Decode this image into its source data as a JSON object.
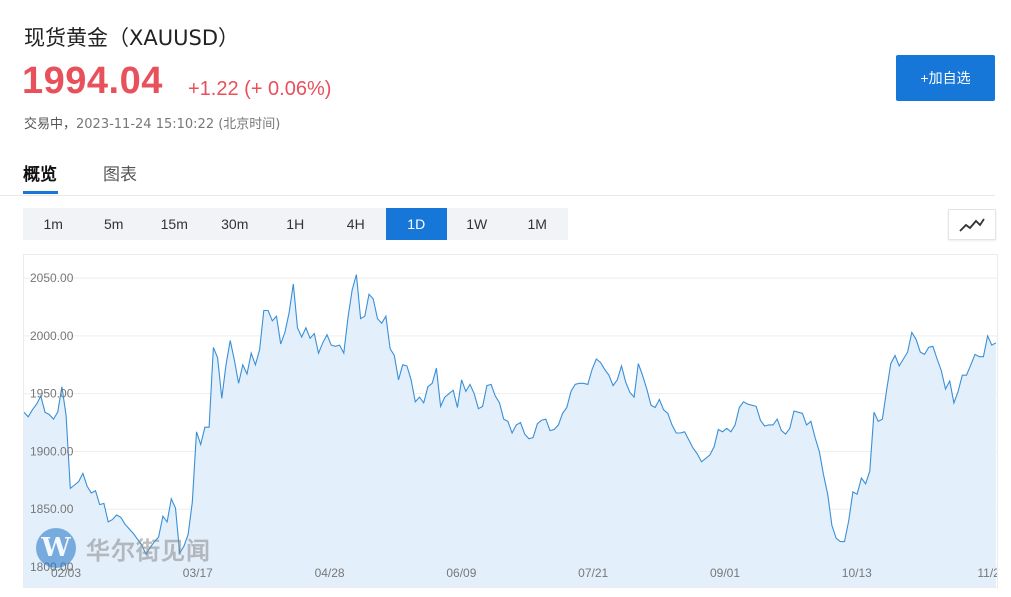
{
  "header": {
    "title": "现货黄金（XAUUSD）",
    "price": "1994.04",
    "change": "+1.22 (+ 0.06%)",
    "status_label": "交易中，",
    "timestamp": "2023-11-24 15:10:22",
    "timezone": "(北京时间)",
    "add_button_label": "+加自选"
  },
  "tabs": [
    {
      "label": "概览",
      "active": true
    },
    {
      "label": "图表",
      "active": false
    }
  ],
  "periods": [
    "1m",
    "5m",
    "15m",
    "30m",
    "1H",
    "4H",
    "1D",
    "1W",
    "1M"
  ],
  "active_period": "1D",
  "chart_type_icon": "line-chart-icon",
  "watermark": {
    "logo_letter": "W",
    "text": "华尔街见闻"
  },
  "colors": {
    "up": "#e8505b",
    "accent": "#1677d9",
    "line": "#3a8fd6",
    "area": "#e3f0fc"
  },
  "chart_data": {
    "type": "area",
    "ylim": [
      1800,
      2070
    ],
    "y_ticks": [
      "1800.00",
      "1850.00",
      "1900.00",
      "1950.00",
      "2000.00",
      "2050.00"
    ],
    "x_ticks": [
      "02/03",
      "03/17",
      "04/28",
      "06/09",
      "07/21",
      "09/01",
      "10/13",
      "11/2"
    ],
    "grid": true,
    "values": [
      1934,
      1930,
      1936,
      1941,
      1948,
      1934,
      1932,
      1928,
      1934,
      1956,
      1931,
      1868,
      1871,
      1874,
      1881,
      1870,
      1864,
      1866,
      1854,
      1855,
      1839,
      1841,
      1845,
      1843,
      1837,
      1833,
      1829,
      1824,
      1819,
      1811,
      1817,
      1822,
      1826,
      1844,
      1839,
      1859,
      1851,
      1812,
      1818,
      1828,
      1856,
      1917,
      1906,
      1921,
      1921,
      1990,
      1981,
      1946,
      1975,
      1996,
      1979,
      1959,
      1975,
      1967,
      1985,
      1975,
      1988,
      2022,
      2022,
      2013,
      2017,
      1993,
      2003,
      2020,
      2045,
      2007,
      1999,
      2007,
      1998,
      2002,
      1985,
      1994,
      2001,
      1992,
      1991,
      1992,
      1985,
      2016,
      2040,
      2053,
      2015,
      2017,
      2036,
      2032,
      2015,
      2011,
      2017,
      1989,
      1983,
      1962,
      1975,
      1974,
      1962,
      1943,
      1947,
      1942,
      1956,
      1959,
      1972,
      1939,
      1947,
      1950,
      1953,
      1938,
      1962,
      1952,
      1958,
      1950,
      1937,
      1939,
      1957,
      1958,
      1948,
      1942,
      1928,
      1926,
      1916,
      1923,
      1925,
      1915,
      1911,
      1912,
      1924,
      1927,
      1928,
      1918,
      1919,
      1923,
      1933,
      1938,
      1952,
      1958,
      1959,
      1959,
      1958,
      1971,
      1980,
      1977,
      1971,
      1966,
      1957,
      1962,
      1974,
      1960,
      1951,
      1947,
      1976,
      1966,
      1954,
      1940,
      1938,
      1945,
      1936,
      1933,
      1923,
      1916,
      1916,
      1917,
      1910,
      1903,
      1898,
      1891,
      1894,
      1897,
      1904,
      1919,
      1917,
      1920,
      1917,
      1923,
      1938,
      1943,
      1941,
      1940,
      1939,
      1927,
      1922,
      1923,
      1923,
      1928,
      1918,
      1915,
      1920,
      1935,
      1934,
      1933,
      1923,
      1926,
      1912,
      1900,
      1880,
      1863,
      1836,
      1825,
      1822,
      1822,
      1840,
      1865,
      1863,
      1877,
      1872,
      1883,
      1934,
      1926,
      1928,
      1953,
      1976,
      1983,
      1974,
      1980,
      1986,
      2003,
      1997,
      1986,
      1984,
      1990,
      1991,
      1980,
      1970,
      1954,
      1961,
      1942,
      1952,
      1966,
      1966,
      1975,
      1984,
      1982,
      1982,
      2000,
      1992,
      1994
    ]
  }
}
